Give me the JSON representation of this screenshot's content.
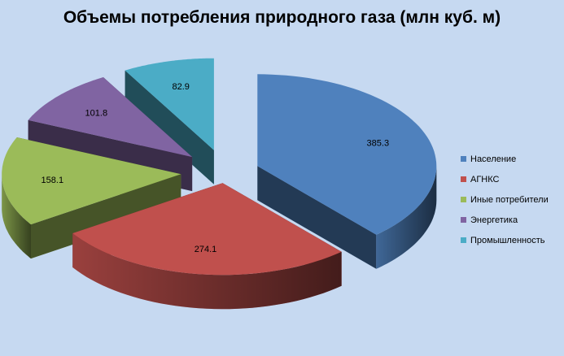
{
  "chart_data": {
    "type": "pie",
    "title": "Объемы потребления природного газа (млн куб. м)",
    "categories": [
      "Население",
      "АГНКС",
      "Иные потребители",
      "Энергетика",
      "Промышленность"
    ],
    "values": [
      385.3,
      274.1,
      158.1,
      101.8,
      82.9
    ],
    "data_labels": [
      "385.3",
      "274.1",
      "158.1",
      "101.8",
      "82.9"
    ],
    "colors": [
      "#4f81bd",
      "#c0504d",
      "#9bbb59",
      "#8064a2",
      "#4bacc6"
    ],
    "legend": "right",
    "style": "3d-exploded"
  }
}
